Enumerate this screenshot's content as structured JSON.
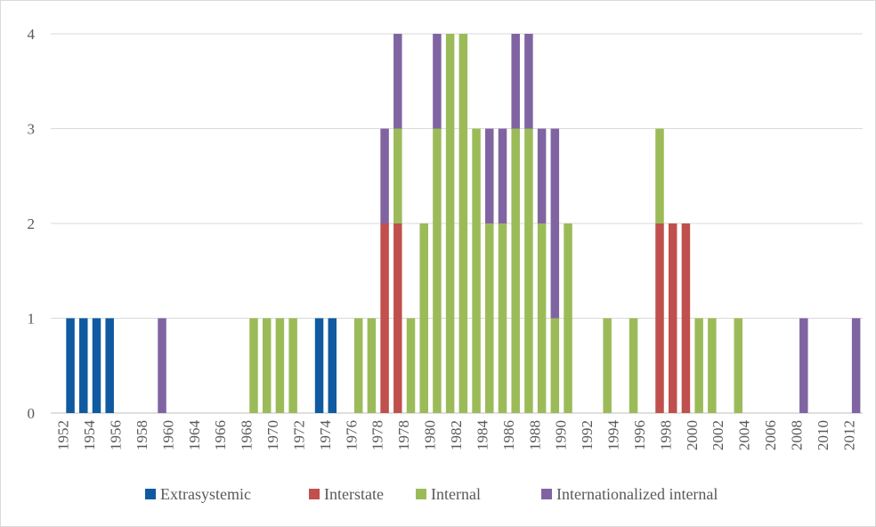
{
  "chart_data": {
    "type": "bar",
    "stacked": true,
    "title": "",
    "xlabel": "",
    "ylabel": "",
    "ylim": [
      0,
      4
    ],
    "yticks": [
      0,
      1,
      2,
      3,
      4
    ],
    "grid": true,
    "legend_position": "bottom",
    "x_start": 1952,
    "x_end": 2013,
    "xtick_labels": [
      "1952",
      "1954",
      "1956",
      "1958",
      "1960",
      "1964",
      "1966",
      "1968",
      "1970",
      "1972",
      "1974",
      "1976",
      "1978",
      "1978",
      "1980",
      "1982",
      "1984",
      "1986",
      "1988",
      "1990",
      "1992",
      "1994",
      "1996",
      "1998",
      "2000",
      "2002",
      "2004",
      "2006",
      "2008",
      "2010",
      "2012"
    ],
    "series": [
      {
        "name": "Extrasystemic",
        "color": "#0f5aa0",
        "points": [
          [
            1953,
            1
          ],
          [
            1954,
            1
          ],
          [
            1955,
            1
          ],
          [
            1956,
            1
          ],
          [
            1972,
            1
          ],
          [
            1973,
            1
          ]
        ]
      },
      {
        "name": "Interstate",
        "color": "#c0504d",
        "points": [
          [
            1977,
            2
          ],
          [
            1978,
            2
          ],
          [
            1998,
            2
          ],
          [
            1999,
            2
          ],
          [
            2000,
            2
          ]
        ]
      },
      {
        "name": "Internal",
        "color": "#9bbb59",
        "points": [
          [
            1967,
            1
          ],
          [
            1968,
            1
          ],
          [
            1969,
            1
          ],
          [
            1970,
            1
          ],
          [
            1975,
            1
          ],
          [
            1976,
            1
          ],
          [
            1978,
            1
          ],
          [
            1979,
            1
          ],
          [
            1980,
            2
          ],
          [
            1981,
            3
          ],
          [
            1982,
            4
          ],
          [
            1983,
            4
          ],
          [
            1984,
            3
          ],
          [
            1985,
            2
          ],
          [
            1986,
            2
          ],
          [
            1987,
            3
          ],
          [
            1988,
            3
          ],
          [
            1989,
            2
          ],
          [
            1990,
            1
          ],
          [
            1991,
            2
          ],
          [
            1994,
            1
          ],
          [
            1996,
            1
          ],
          [
            1998,
            1
          ],
          [
            2001,
            1
          ],
          [
            2002,
            1
          ],
          [
            2004,
            1
          ]
        ]
      },
      {
        "name": "Internationalized internal",
        "color": "#8064a2",
        "points": [
          [
            1960,
            1
          ],
          [
            1977,
            1
          ],
          [
            1978,
            1
          ],
          [
            1981,
            1
          ],
          [
            1985,
            1
          ],
          [
            1986,
            1
          ],
          [
            1987,
            1
          ],
          [
            1988,
            1
          ],
          [
            1989,
            1
          ],
          [
            1990,
            2
          ],
          [
            2009,
            1
          ],
          [
            2013,
            1
          ]
        ]
      }
    ]
  }
}
